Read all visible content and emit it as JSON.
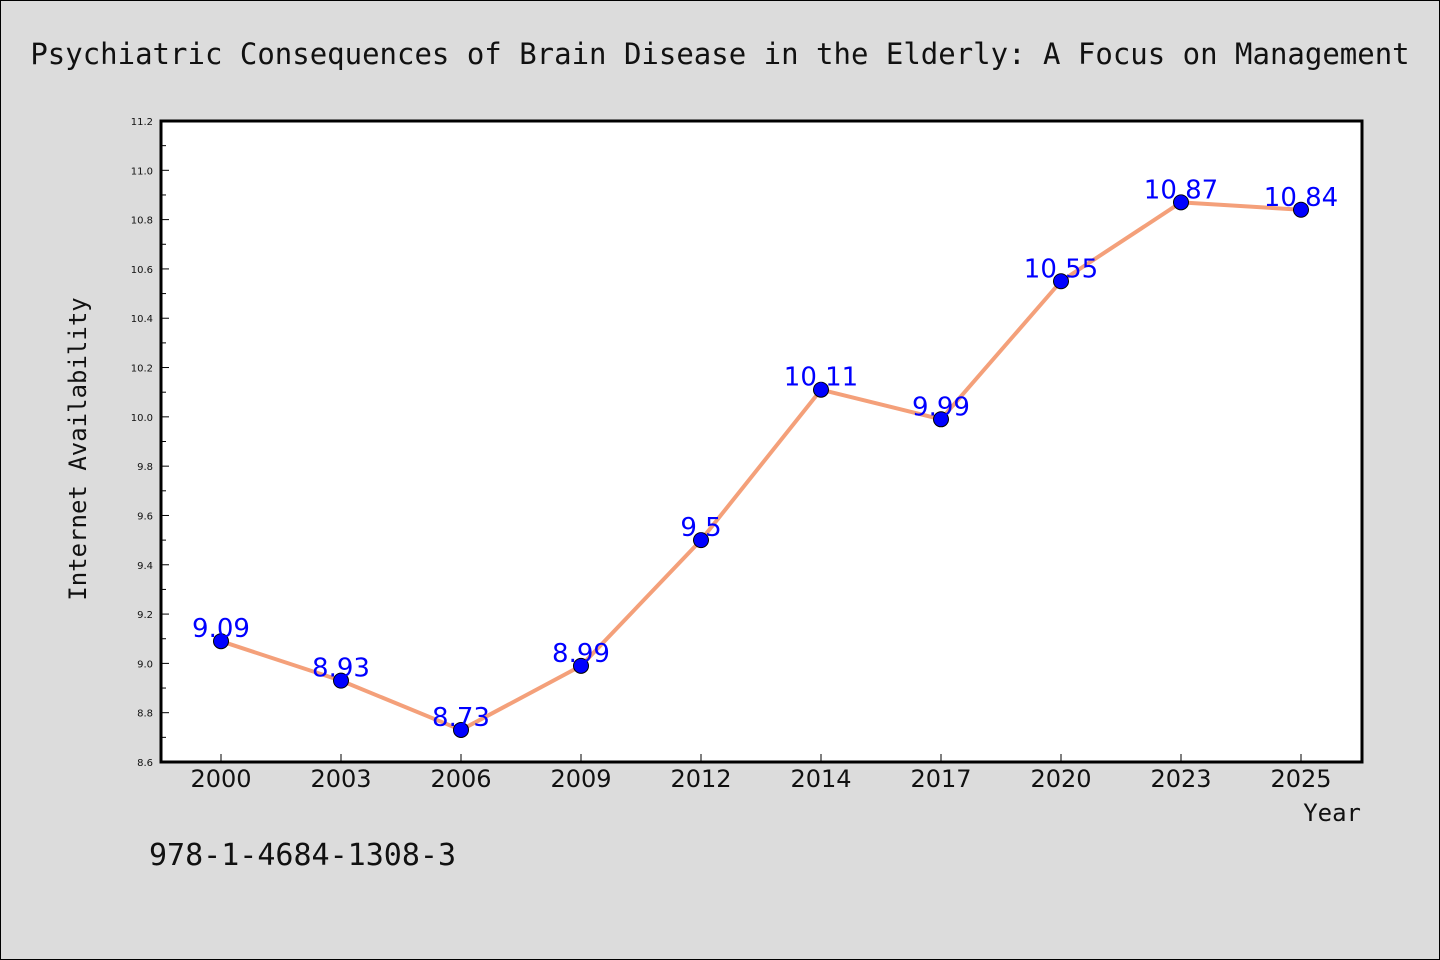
{
  "chart_data": {
    "type": "line",
    "title": "Psychiatric Consequences of Brain Disease in the Elderly: A Focus on Management",
    "xlabel": "Year",
    "ylabel": "Internet Availability",
    "categories": [
      "2000",
      "2003",
      "2006",
      "2009",
      "2012",
      "2014",
      "2017",
      "2020",
      "2023",
      "2025"
    ],
    "series": [
      {
        "values": [
          9.09,
          8.93,
          8.73,
          8.99,
          9.5,
          10.11,
          9.99,
          10.55,
          10.87,
          10.84
        ],
        "labels": [
          "9.09",
          "8.93",
          "8.73",
          "8.99",
          "9.5",
          "10.11",
          "9.99",
          "10.55",
          "10.87",
          "10.84"
        ],
        "line_color": "#f4a07a",
        "marker_color": "#0000ff"
      }
    ],
    "ylim": [
      8.6,
      11.2
    ],
    "yticks": [
      "8.6",
      "8.8",
      "9.0",
      "9.2",
      "9.4",
      "9.6",
      "9.8",
      "10.0",
      "10.2",
      "10.4",
      "10.6",
      "10.8",
      "11.0",
      "11.2"
    ],
    "grid": false,
    "legend": "none"
  },
  "footer": {
    "isbn": "978-1-4684-1308-3"
  },
  "colors": {
    "background": "#dcdcdc",
    "plot_background": "#ffffff",
    "line": "#f4a07a",
    "marker": "#0000ff",
    "data_label": "#0000ff"
  }
}
